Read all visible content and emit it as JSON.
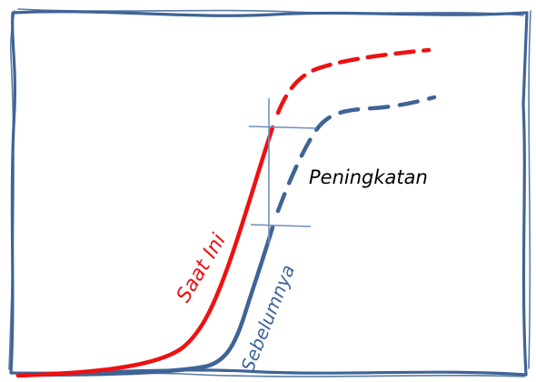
{
  "labels": {
    "current": "Saat Ini",
    "previous": "Sebelumnya",
    "improvement": "Peningkatan"
  },
  "colors": {
    "current_curve": "#ee1111",
    "previous_curve": "#3f6496",
    "frame": "#3f6496",
    "marker": "#6f8fbf",
    "text": "#000000"
  }
}
